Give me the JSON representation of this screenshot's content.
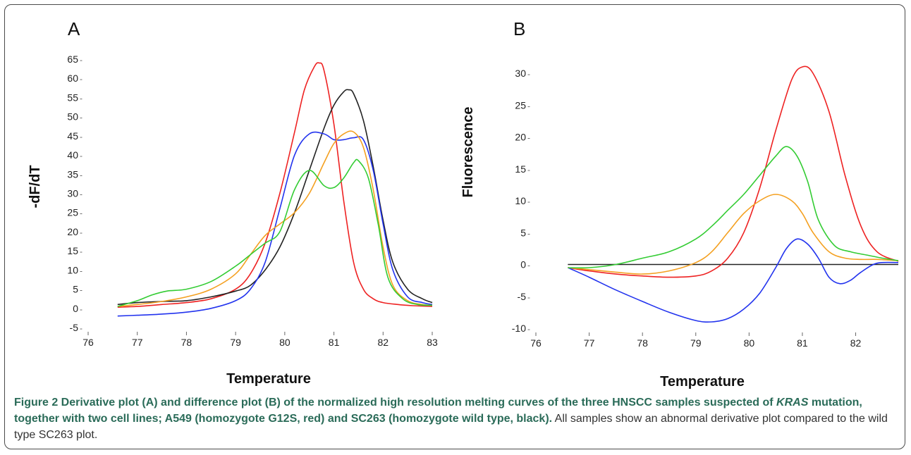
{
  "panels": [
    {
      "panel_letter": "A",
      "ylabel": "-dF/dT",
      "xlabel": "Temperature",
      "xticks": [
        "76",
        "77",
        "78",
        "79",
        "80",
        "81",
        "82",
        "83"
      ],
      "yticks": [
        "-5",
        "0",
        "5",
        "10",
        "15",
        "20",
        "25",
        "30",
        "35",
        "40",
        "45",
        "50",
        "55",
        "60",
        "65"
      ]
    },
    {
      "panel_letter": "B",
      "ylabel": "Fluorescence",
      "xlabel": "Temperature",
      "xticks": [
        "76",
        "77",
        "78",
        "79",
        "80",
        "81",
        "82"
      ],
      "yticks": [
        "-10",
        "-5",
        "0",
        "5",
        "10",
        "15",
        "20",
        "25",
        "30"
      ]
    }
  ],
  "caption": {
    "lead": "Figure 2",
    "bold_text_1": " Derivative plot (A) and difference plot (B) of the normalized high resolution melting curves of the three HNSCC samples suspected of ",
    "bold_italic": "KRAS",
    "bold_text_2": " mutation, together with two cell lines; A549 (homozygote G12S, red) and SC263 (homozygote wild type, black).",
    "rest": " All samples show an abnormal derivative plot compared to the wild type SC263 plot."
  },
  "colors": {
    "red": "#ee2222",
    "black": "#222222",
    "blue": "#2233ee",
    "orange": "#f4a020",
    "green": "#33cc33",
    "caption_bold": "#2a6b58"
  },
  "chart_data": [
    {
      "type": "line",
      "xlabel": "Temperature",
      "ylabel": "-dF/dT",
      "xlim": [
        76,
        83
      ],
      "ylim": [
        -5,
        65
      ],
      "grid": false,
      "series": [
        {
          "color": "red",
          "x": [
            76.6,
            77,
            77.5,
            78,
            78.5,
            79,
            79.3,
            79.6,
            79.9,
            80.2,
            80.4,
            80.6,
            80.7,
            80.8,
            81,
            81.2,
            81.4,
            81.6,
            81.8,
            82,
            82.3,
            82.6,
            83
          ],
          "y": [
            0.3,
            0.5,
            1,
            1.5,
            2.5,
            5,
            9,
            17,
            30,
            46,
            57,
            63,
            64,
            62,
            48,
            28,
            12,
            5,
            2.5,
            1.5,
            1,
            0.7,
            0.5
          ]
        },
        {
          "color": "black",
          "x": [
            76.6,
            77,
            77.5,
            78,
            78.5,
            79,
            79.3,
            79.6,
            79.9,
            80.2,
            80.5,
            80.8,
            81,
            81.2,
            81.3,
            81.4,
            81.6,
            81.8,
            82,
            82.2,
            82.5,
            82.8,
            83
          ],
          "y": [
            1,
            1.5,
            1.8,
            2,
            3,
            4.5,
            6,
            10,
            16,
            25,
            36,
            47,
            53,
            56.5,
            57,
            56,
            49,
            37,
            23,
            12,
            5,
            2.5,
            1.5
          ]
        },
        {
          "color": "blue",
          "x": [
            76.6,
            77,
            77.5,
            78,
            78.5,
            79,
            79.3,
            79.6,
            79.9,
            80.2,
            80.5,
            80.8,
            81,
            81.2,
            81.4,
            81.6,
            81.8,
            82,
            82.2,
            82.5,
            82.8,
            83
          ],
          "y": [
            -2,
            -1.8,
            -1.5,
            -1,
            0,
            2,
            5,
            12,
            26,
            40,
            45.5,
            45.5,
            44,
            44,
            44.5,
            44,
            36,
            22,
            10,
            3,
            1.5,
            1
          ]
        },
        {
          "color": "orange",
          "x": [
            76.6,
            77,
            77.5,
            78,
            78.5,
            79,
            79.3,
            79.6,
            79.9,
            80.2,
            80.5,
            80.8,
            81,
            81.2,
            81.4,
            81.6,
            81.8,
            82,
            82.2,
            82.5,
            82.8,
            83
          ],
          "y": [
            0.5,
            1,
            1.8,
            3,
            5,
            9,
            14,
            19,
            22,
            25,
            30,
            38,
            43,
            45.5,
            46,
            42,
            31,
            16,
            6,
            2,
            1,
            0.8
          ]
        },
        {
          "color": "green",
          "x": [
            76.6,
            77,
            77.3,
            77.6,
            78,
            78.5,
            79,
            79.3,
            79.6,
            79.9,
            80.2,
            80.5,
            80.8,
            81,
            81.2,
            81.4,
            81.5,
            81.7,
            81.9,
            82.1,
            82.4,
            82.7,
            83
          ],
          "y": [
            0.5,
            2,
            3.5,
            4.5,
            5,
            7,
            11,
            14,
            17,
            20,
            31,
            36,
            32,
            31.5,
            34,
            38,
            38.5,
            34,
            22,
            8,
            2.5,
            1,
            0.8
          ]
        }
      ]
    },
    {
      "type": "line",
      "xlabel": "Temperature",
      "ylabel": "Fluorescence",
      "xlim": [
        76,
        82.8
      ],
      "ylim": [
        -10,
        32
      ],
      "grid": false,
      "baseline": 0,
      "series": [
        {
          "color": "red",
          "x": [
            76.6,
            77,
            77.5,
            78,
            78.5,
            79,
            79.3,
            79.6,
            79.9,
            80.2,
            80.5,
            80.8,
            81,
            81.2,
            81.5,
            81.8,
            82.1,
            82.4,
            82.8
          ],
          "y": [
            -0.5,
            -1,
            -1.5,
            -1.8,
            -2,
            -1.8,
            -1,
            1,
            5,
            12,
            21,
            29,
            31,
            30,
            24,
            14,
            6,
            2,
            0.5
          ]
        },
        {
          "color": "blue",
          "x": [
            76.6,
            77,
            77.5,
            78,
            78.5,
            79,
            79.3,
            79.6,
            79.9,
            80.2,
            80.5,
            80.7,
            80.9,
            81.1,
            81.3,
            81.5,
            81.7,
            81.9,
            82.1,
            82.4,
            82.8
          ],
          "y": [
            -0.5,
            -2,
            -4,
            -5.8,
            -7.5,
            -8.8,
            -9,
            -8.5,
            -7,
            -4.5,
            -0.5,
            2.5,
            4,
            3.2,
            1,
            -2,
            -3,
            -2.5,
            -1.2,
            0.2,
            0.3
          ]
        },
        {
          "color": "orange",
          "x": [
            76.6,
            77,
            77.5,
            78,
            78.5,
            79,
            79.3,
            79.6,
            79.9,
            80.2,
            80.5,
            80.8,
            81,
            81.2,
            81.5,
            81.8,
            82.1,
            82.4,
            82.8
          ],
          "y": [
            -0.5,
            -0.8,
            -1.2,
            -1.5,
            -1,
            0.3,
            2,
            5,
            8,
            10,
            11,
            10,
            8,
            5,
            2,
            1,
            0.8,
            0.8,
            0.6
          ]
        },
        {
          "color": "green",
          "x": [
            76.6,
            77,
            77.5,
            78,
            78.5,
            79,
            79.3,
            79.6,
            79.9,
            80.2,
            80.5,
            80.7,
            80.9,
            81.1,
            81.3,
            81.6,
            81.9,
            82.2,
            82.5,
            82.8
          ],
          "y": [
            -0.5,
            -0.5,
            0,
            1,
            2,
            4,
            6,
            8.5,
            11,
            14,
            17,
            18.5,
            17,
            13,
            7,
            3,
            2,
            1.5,
            1,
            0.6
          ]
        }
      ]
    }
  ]
}
